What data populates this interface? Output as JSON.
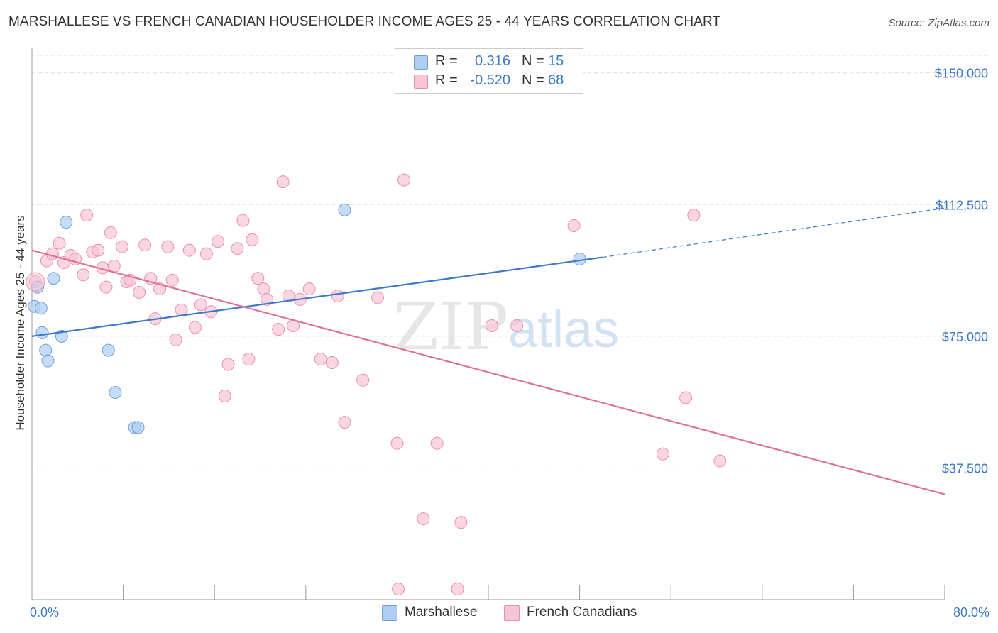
{
  "title": "MARSHALLESE VS FRENCH CANADIAN HOUSEHOLDER INCOME AGES 25 - 44 YEARS CORRELATION CHART",
  "source": "Source: ZipAtlas.com",
  "watermark": {
    "zip": "ZIP",
    "atlas": "atlas"
  },
  "legend": {
    "rows": [
      {
        "r_label": "R =",
        "r_value": "0.316",
        "n_label": "N =",
        "n_value": "15",
        "color": "#aecdf2",
        "border": "#6f9fd8"
      },
      {
        "r_label": "R =",
        "r_value": "-0.520",
        "n_label": "N =",
        "n_value": "68",
        "color": "#f8c5d6",
        "border": "#ea8fb0"
      }
    ]
  },
  "bottom_legend": [
    {
      "label": "Marshallese",
      "color": "#aecdf2",
      "border": "#6f9fd8"
    },
    {
      "label": "French Canadians",
      "color": "#f8c5d6",
      "border": "#ea8fb0"
    }
  ],
  "colors": {
    "blue_line": "#3a78c8",
    "pink_line": "#e0709a",
    "axis_label": "#3a78c8",
    "grid": "#dddddd"
  },
  "chart_data": {
    "type": "scatter",
    "title": "MARSHALLESE VS FRENCH CANADIAN HOUSEHOLDER INCOME AGES 25 - 44 YEARS CORRELATION CHART",
    "xlabel": "",
    "ylabel": "Householder Income Ages 25 - 44 years",
    "xlim": [
      0,
      80
    ],
    "ylim": [
      0,
      155000
    ],
    "x_tick_labels": [
      "0.0%",
      "80.0%"
    ],
    "y_ticks": [
      37500,
      75000,
      112500,
      150000
    ],
    "y_tick_labels": [
      "$37,500",
      "$75,000",
      "$112,500",
      "$150,000"
    ],
    "grid": true,
    "legend_position": "top-center",
    "series": [
      {
        "name": "Marshallese",
        "points": [
          [
            0.2,
            83500
          ],
          [
            0.5,
            89000
          ],
          [
            0.8,
            83000
          ],
          [
            0.9,
            76000
          ],
          [
            1.2,
            71000
          ],
          [
            1.4,
            68000
          ],
          [
            1.9,
            91500
          ],
          [
            2.6,
            75000
          ],
          [
            3.0,
            107500
          ],
          [
            6.7,
            71000
          ],
          [
            7.3,
            59000
          ],
          [
            9.0,
            49000
          ],
          [
            9.3,
            49000
          ],
          [
            27.4,
            111000
          ],
          [
            48.0,
            97000
          ]
        ],
        "trend": {
          "x0": 0,
          "y0": 75000,
          "x1": 50,
          "y1": 97500,
          "dashed_to_x": 80,
          "dashed_to_y": 111500
        }
      },
      {
        "name": "French Canadians",
        "points": [
          [
            0.3,
            90500
          ],
          [
            1.3,
            96500
          ],
          [
            1.8,
            98500
          ],
          [
            2.4,
            101500
          ],
          [
            2.8,
            96000
          ],
          [
            3.4,
            98000
          ],
          [
            3.8,
            97000
          ],
          [
            4.8,
            109500
          ],
          [
            4.5,
            92500
          ],
          [
            5.3,
            99000
          ],
          [
            5.8,
            99500
          ],
          [
            6.2,
            94500
          ],
          [
            6.5,
            89000
          ],
          [
            6.9,
            104500
          ],
          [
            7.2,
            95000
          ],
          [
            7.9,
            100500
          ],
          [
            8.3,
            90500
          ],
          [
            8.6,
            91000
          ],
          [
            9.4,
            87500
          ],
          [
            9.9,
            101000
          ],
          [
            10.4,
            91500
          ],
          [
            10.8,
            80000
          ],
          [
            11.2,
            88500
          ],
          [
            11.9,
            100500
          ],
          [
            12.3,
            91000
          ],
          [
            12.6,
            74000
          ],
          [
            13.1,
            82500
          ],
          [
            13.8,
            99500
          ],
          [
            14.3,
            77500
          ],
          [
            14.8,
            84000
          ],
          [
            15.3,
            98500
          ],
          [
            15.7,
            82000
          ],
          [
            16.3,
            102000
          ],
          [
            16.9,
            58000
          ],
          [
            17.2,
            67000
          ],
          [
            18.0,
            100000
          ],
          [
            18.5,
            108000
          ],
          [
            19.0,
            68500
          ],
          [
            19.3,
            102500
          ],
          [
            19.8,
            91500
          ],
          [
            20.3,
            88500
          ],
          [
            20.6,
            85500
          ],
          [
            21.6,
            77000
          ],
          [
            22.0,
            119000
          ],
          [
            22.5,
            86500
          ],
          [
            22.9,
            78000
          ],
          [
            23.5,
            85500
          ],
          [
            24.3,
            88500
          ],
          [
            25.3,
            68500
          ],
          [
            26.3,
            67500
          ],
          [
            26.8,
            86500
          ],
          [
            27.4,
            50500
          ],
          [
            29.0,
            62500
          ],
          [
            30.3,
            86000
          ],
          [
            32.0,
            44500
          ],
          [
            32.1,
            3000
          ],
          [
            32.6,
            119500
          ],
          [
            34.3,
            23000
          ],
          [
            35.5,
            44500
          ],
          [
            37.3,
            3000
          ],
          [
            37.6,
            22000
          ],
          [
            40.3,
            78000
          ],
          [
            42.5,
            78000
          ],
          [
            47.5,
            106500
          ],
          [
            55.3,
            41500
          ],
          [
            57.3,
            57500
          ],
          [
            58.0,
            109500
          ],
          [
            60.3,
            39500
          ]
        ],
        "trend": {
          "x0": 0,
          "y0": 99500,
          "x1": 80,
          "y1": 30000
        }
      }
    ]
  }
}
